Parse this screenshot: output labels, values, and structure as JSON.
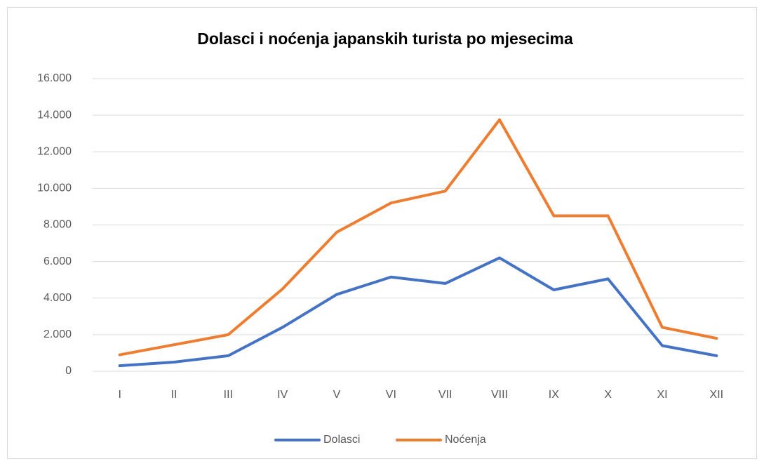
{
  "chart_data": {
    "type": "line",
    "title": "Dolasci i noćenja japanskih turista po mjesecima",
    "categories": [
      "I",
      "II",
      "III",
      "IV",
      "V",
      "VI",
      "VII",
      "VIII",
      "IX",
      "X",
      "XI",
      "XII"
    ],
    "series": [
      {
        "name": "Dolasci",
        "color": "#4472c4",
        "values": [
          300,
          500,
          850,
          2400,
          4200,
          5150,
          4800,
          6200,
          4450,
          5050,
          1400,
          850
        ]
      },
      {
        "name": "Noćenja",
        "color": "#ed7d31",
        "values": [
          900,
          1450,
          2000,
          4500,
          7600,
          9200,
          9850,
          13750,
          8500,
          8500,
          2400,
          1800
        ]
      }
    ],
    "ylim": [
      0,
      16000
    ],
    "yticks": [
      0,
      {
        "value": 2000,
        "label": "2.000"
      },
      {
        "value": 4000,
        "label": "4.000"
      },
      {
        "value": 6000,
        "label": "6.000"
      },
      {
        "value": 8000,
        "label": "8.000"
      },
      {
        "value": 10000,
        "label": "10.000"
      },
      {
        "value": 12000,
        "label": "12.000"
      },
      {
        "value": 14000,
        "label": "14.000"
      },
      {
        "value": 16000,
        "label": "16.000"
      }
    ],
    "grid": true,
    "legend": "bottom"
  }
}
